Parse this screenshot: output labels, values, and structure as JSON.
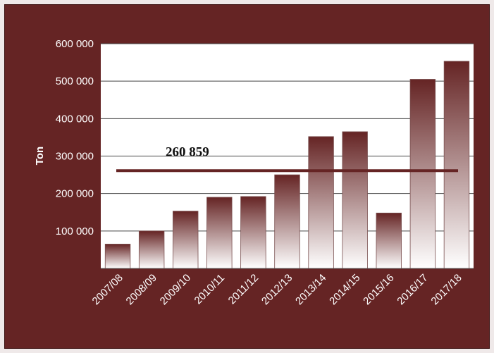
{
  "chart_data": {
    "type": "bar",
    "categories": [
      "2007/08",
      "2008/09",
      "2009/10",
      "2010/11",
      "2011/12",
      "2012/13",
      "2013/14",
      "2014/15",
      "2015/16",
      "2016/17",
      "2017/18"
    ],
    "values": [
      65000,
      100000,
      153000,
      190000,
      192000,
      250000,
      352000,
      365000,
      148000,
      505000,
      553000
    ],
    "ylabel": "Ton",
    "ylim": [
      0,
      600000
    ],
    "yticks": [
      "600 000",
      "500 000",
      "400 000",
      "300 000",
      "200 000",
      "100 000"
    ],
    "ytick_values": [
      600000,
      500000,
      400000,
      300000,
      200000,
      100000
    ],
    "average_line": {
      "value": 260859,
      "label": "260 859",
      "color": "#652424"
    },
    "grid": true,
    "colors": {
      "frame": "#652424",
      "plot_bg": "#ffffff",
      "bar_top": "#652424",
      "bar_bottom": "#ffffff",
      "text": "#ffffff"
    }
  }
}
